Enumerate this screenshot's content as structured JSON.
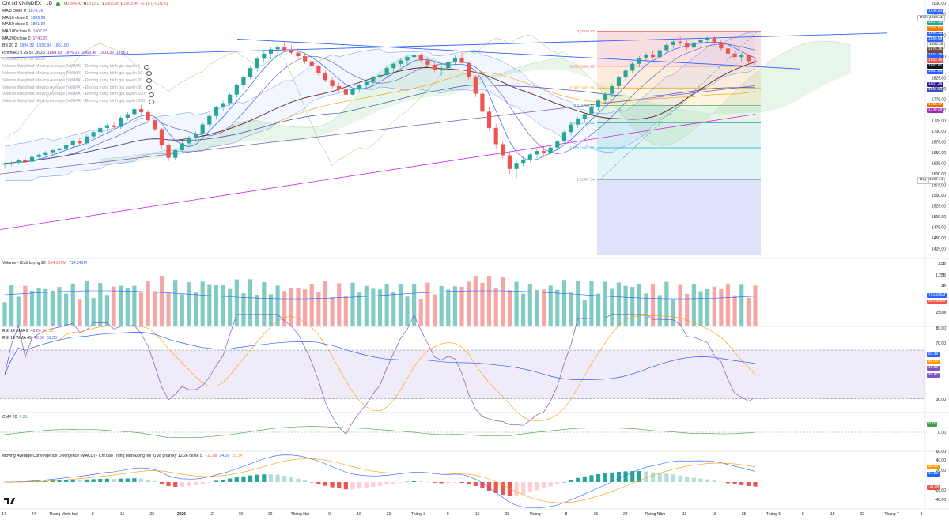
{
  "header": {
    "title": "Chỉ số VNINDEX · 1D",
    "ohlc": [
      {
        "label": "O",
        "value": "1864.42"
      },
      {
        "label": "H",
        "value": "1873.17"
      },
      {
        "label": "L",
        "value": "1855.96"
      },
      {
        "label": "C",
        "value": "1863.46"
      }
    ],
    "change": "−0.16 (−0.01%)"
  },
  "legend": [
    {
      "label": "MA 5 close 0",
      "values": [
        "1874.36"
      ],
      "color": "#2962ff"
    },
    {
      "label": "MA 10 close 0",
      "values": [
        "1889.99"
      ],
      "color": "#2962ff"
    },
    {
      "label": "MA 50 close 0",
      "values": [
        "1801.94"
      ],
      "color": "#3f51b5"
    },
    {
      "label": "MA 100 close 0",
      "values": [
        "1807.25"
      ],
      "color": "#7e57c2"
    },
    {
      "label": "MA 200 close 0",
      "values": [
        "1740.09"
      ],
      "color": "#9c27b0"
    },
    {
      "label": "BB 20 2",
      "values": [
        "1894.32",
        "1936.84",
        "1851.80"
      ],
      "color": "#2962ff"
    },
    {
      "label": "Ichimoku 9 26 52 26 26",
      "values": [
        "1894.53",
        "1876.15",
        "1863.46",
        "1901.35",
        "1756.77"
      ],
      "color": "#7b1fa2"
    },
    {
      "label": "Ichimoku 9 17 36 36 36",
      "values": [],
      "color": "#7b1fa2"
    },
    {
      "label": "Volume Weighted Moving Average (VWMA) - Đường trung bình gia quyền 5",
      "values": [],
      "color": "#2962ff"
    },
    {
      "label": "Volume Weighted Moving Average (VWMA) - Đường trung bình gia quyền 10",
      "values": [],
      "color": "#2962ff"
    },
    {
      "label": "Volume Weighted Moving Average (VWMA) - Đường trung bình gia quyền 20",
      "values": [],
      "color": "#2962ff"
    },
    {
      "label": "Volume Weighted Moving Average (VWMA) - Đường trung bình gia quyền 50",
      "values": [],
      "color": "#2962ff"
    },
    {
      "label": "Volume Weighted Moving Average (VWMA) - Đường trung bình gia quyền 100",
      "values": [],
      "color": "#2962ff"
    },
    {
      "label": "Volume Weighted Moving Average (VWMA) - Đường trung bình gia quyền 200",
      "values": [],
      "color": "#2962ff"
    }
  ],
  "panes": {
    "volume": {
      "label": "Volume - Khối lượng 20",
      "values": [
        "554.909M",
        "714.241M"
      ],
      "colors": [
        "#ef5350",
        "#2962ff"
      ]
    },
    "rsi": [
      {
        "label": "RSI 14 EMA 9",
        "values": [
          "48.80",
          "55.03"
        ],
        "colors": [
          "#7e57c2",
          "#ff9800"
        ]
      },
      {
        "label": "RSI 14 WMA 45",
        "values": [
          "48.80",
          "61.38"
        ],
        "colors": [
          "#7e57c2",
          "#2962ff"
        ]
      }
    ],
    "cmf": {
      "label": "CMF 20",
      "values": [
        "0.21"
      ],
      "colors": [
        "#43a047"
      ]
    },
    "macd": {
      "label": "Moving Average Convergence Divergence (MACD) - Chỉ báo Trung bình Động hội tụ và phân kỳ 12 26 close 9",
      "values": [
        "−11.08",
        "14.26",
        "25.34"
      ],
      "colors": [
        "#ef5350",
        "#2962ff",
        "#ff9800"
      ]
    }
  },
  "price_axis": {
    "ticks": [
      "2000.00",
      "1975.00",
      "1925.00",
      "1875.00",
      "1825.00",
      "1800.00",
      "1775.00",
      "1750.00",
      "1725.00",
      "1700.00",
      "1675.00",
      "1650.00",
      "1625.00",
      "1600.00",
      "1575.00",
      "1550.00",
      "1525.00",
      "1500.00",
      "1475.00",
      "1450.00",
      "1425.00"
    ],
    "markers": [
      {
        "text": "1936.84",
        "bg": "#2962ff"
      },
      {
        "text": "1923.11",
        "bg": "#ffffff",
        "fg": "#131722",
        "tag": "Đỉnh"
      },
      {
        "text": "1901.35",
        "bg": "#26a69a"
      },
      {
        "text": "1894.53",
        "bg": "#f57c00"
      },
      {
        "text": "1894.32",
        "bg": "#2962ff"
      },
      {
        "text": "1889.99",
        "bg": "#2962ff"
      },
      {
        "text": "1885.35",
        "bg": "#ffffff",
        "fg": "#131722"
      },
      {
        "text": "1876.15",
        "bg": "#6d4c41"
      },
      {
        "text": "1874.36",
        "bg": "#2962ff"
      },
      {
        "text": "1863.46",
        "bg": "#ef5350"
      },
      {
        "text": "1862.81",
        "bg": "#131722"
      },
      {
        "text": "1851.80",
        "bg": "#2962ff"
      },
      {
        "text": "1807.25",
        "bg": "#311b92"
      },
      {
        "text": "1801.94",
        "bg": "#3f51b5"
      },
      {
        "text": "1756.77",
        "bg": "#ef6c00"
      },
      {
        "text": "1740.09",
        "bg": "#9c27b0"
      },
      {
        "text": "1586.44",
        "bg": "#ffffff",
        "fg": "#131722",
        "tag": "Đáy"
      }
    ]
  },
  "volume_axis": {
    "ticks": [
      "1.5B",
      "1.25B",
      "1B",
      "250M"
    ],
    "markers": [
      {
        "text": "714.241M",
        "bg": "#2962ff"
      },
      {
        "text": "554.909M",
        "bg": "#ef5350"
      }
    ]
  },
  "rsi_axis": {
    "ticks": [
      "80.00",
      "70.00",
      "30.00"
    ],
    "markers": [
      {
        "text": "61.38",
        "bg": "#2962ff"
      },
      {
        "text": "55.03",
        "bg": "#ff9800"
      },
      {
        "text": "48.80",
        "bg": "#7e57c2"
      },
      {
        "text": "48.80",
        "bg": "#7e57c2"
      }
    ]
  },
  "cmf_axis": {
    "ticks": [
      "0.00"
    ],
    "markers": [
      {
        "text": "0.21",
        "bg": "#43a047"
      }
    ]
  },
  "macd_axis": {
    "ticks": [
      "60.00",
      "40.00",
      "20.00",
      "-20.00",
      "-40.00"
    ],
    "markers": [
      {
        "text": "25.34",
        "bg": "#ff9800"
      },
      {
        "text": "14.26",
        "bg": "#2962ff"
      },
      {
        "text": "-11.08",
        "bg": "#ef5350"
      }
    ]
  },
  "time_axis": [
    "17",
    "24",
    "Tháng Mười hai",
    "8",
    "15",
    "22",
    "2026",
    "12",
    "19",
    "26",
    "Tháng Hai",
    "9",
    "16",
    "23",
    "Tháng 3",
    "9",
    "16",
    "23",
    "Tháng 4",
    "8",
    "15",
    "22",
    "Tháng Năm",
    "11",
    "18",
    "25",
    "Tháng 6",
    "8",
    "15",
    "22",
    "Tháng 7",
    "8"
  ],
  "fib_levels": [
    {
      "label": "0 (1934.13)",
      "value": 1934.13,
      "color": "#ef5350"
    },
    {
      "label": "0.236 (1852.29)",
      "value": 1852.29,
      "color": "#ef5350"
    },
    {
      "label": "0.382 (1801.66)",
      "value": 1801.66,
      "color": "#ff9800"
    },
    {
      "label": "0.5 (1760.74)",
      "value": 1760.74,
      "color": "#4caf50"
    },
    {
      "label": "0.618 (1719.82)",
      "value": 1719.82,
      "color": "#26a69a"
    },
    {
      "label": "0.786 (1661.56)",
      "value": 1661.56,
      "color": "#00bcd4"
    },
    {
      "label": "1 (1587.34)",
      "value": 1587.34,
      "color": "#787b86"
    }
  ],
  "chart_data": {
    "type": "candlestick",
    "title": "Chỉ số VNINDEX · 1D",
    "ylim": [
      1410,
      2000
    ],
    "candles": [
      [
        1622,
        1628,
        1612,
        1625
      ],
      [
        1625,
        1630,
        1618,
        1627
      ],
      [
        1627,
        1636,
        1622,
        1633
      ],
      [
        1633,
        1640,
        1626,
        1629
      ],
      [
        1629,
        1642,
        1626,
        1640
      ],
      [
        1640,
        1648,
        1634,
        1645
      ],
      [
        1645,
        1654,
        1640,
        1651
      ],
      [
        1651,
        1659,
        1645,
        1656
      ],
      [
        1656,
        1663,
        1650,
        1660
      ],
      [
        1660,
        1672,
        1655,
        1668
      ],
      [
        1668,
        1680,
        1663,
        1677
      ],
      [
        1677,
        1685,
        1668,
        1672
      ],
      [
        1672,
        1692,
        1668,
        1688
      ],
      [
        1688,
        1702,
        1682,
        1698
      ],
      [
        1698,
        1712,
        1690,
        1708
      ],
      [
        1708,
        1718,
        1700,
        1714
      ],
      [
        1714,
        1722,
        1705,
        1710
      ],
      [
        1710,
        1736,
        1706,
        1732
      ],
      [
        1732,
        1745,
        1725,
        1740
      ],
      [
        1740,
        1756,
        1735,
        1752
      ],
      [
        1752,
        1762,
        1740,
        1745
      ],
      [
        1745,
        1750,
        1720,
        1726
      ],
      [
        1726,
        1730,
        1700,
        1705
      ],
      [
        1705,
        1708,
        1660,
        1668
      ],
      [
        1668,
        1672,
        1630,
        1638
      ],
      [
        1638,
        1660,
        1632,
        1656
      ],
      [
        1656,
        1676,
        1650,
        1672
      ],
      [
        1672,
        1690,
        1665,
        1686
      ],
      [
        1686,
        1700,
        1678,
        1694
      ],
      [
        1694,
        1720,
        1688,
        1716
      ],
      [
        1716,
        1740,
        1710,
        1736
      ],
      [
        1736,
        1760,
        1730,
        1756
      ],
      [
        1756,
        1772,
        1748,
        1766
      ],
      [
        1766,
        1790,
        1760,
        1786
      ],
      [
        1786,
        1812,
        1780,
        1808
      ],
      [
        1808,
        1832,
        1800,
        1828
      ],
      [
        1828,
        1852,
        1822,
        1848
      ],
      [
        1848,
        1875,
        1840,
        1870
      ],
      [
        1870,
        1888,
        1860,
        1882
      ],
      [
        1882,
        1898,
        1872,
        1892
      ],
      [
        1892,
        1905,
        1880,
        1898
      ],
      [
        1898,
        1910,
        1885,
        1890
      ],
      [
        1890,
        1902,
        1878,
        1884
      ],
      [
        1884,
        1895,
        1870,
        1876
      ],
      [
        1876,
        1882,
        1858,
        1864
      ],
      [
        1864,
        1872,
        1848,
        1852
      ],
      [
        1852,
        1856,
        1830,
        1836
      ],
      [
        1836,
        1842,
        1815,
        1820
      ],
      [
        1820,
        1826,
        1800,
        1806
      ],
      [
        1806,
        1814,
        1790,
        1798
      ],
      [
        1798,
        1805,
        1780,
        1786
      ],
      [
        1786,
        1802,
        1782,
        1798
      ],
      [
        1798,
        1812,
        1792,
        1808
      ],
      [
        1808,
        1822,
        1800,
        1816
      ],
      [
        1816,
        1830,
        1810,
        1826
      ],
      [
        1826,
        1838,
        1815,
        1832
      ],
      [
        1832,
        1852,
        1825,
        1848
      ],
      [
        1848,
        1862,
        1838,
        1858
      ],
      [
        1858,
        1872,
        1850,
        1866
      ],
      [
        1866,
        1880,
        1856,
        1874
      ],
      [
        1874,
        1886,
        1866,
        1878
      ],
      [
        1878,
        1884,
        1860,
        1866
      ],
      [
        1866,
        1872,
        1848,
        1856
      ],
      [
        1856,
        1862,
        1838,
        1844
      ],
      [
        1844,
        1852,
        1830,
        1848
      ],
      [
        1848,
        1866,
        1842,
        1862
      ],
      [
        1862,
        1878,
        1855,
        1872
      ],
      [
        1872,
        1885,
        1864,
        1860
      ],
      [
        1860,
        1864,
        1820,
        1826
      ],
      [
        1826,
        1832,
        1780,
        1788
      ],
      [
        1788,
        1796,
        1740,
        1746
      ],
      [
        1746,
        1756,
        1700,
        1708
      ],
      [
        1708,
        1716,
        1660,
        1670
      ],
      [
        1670,
        1676,
        1636,
        1644
      ],
      [
        1644,
        1650,
        1600,
        1612
      ],
      [
        1612,
        1632,
        1590,
        1626
      ],
      [
        1626,
        1640,
        1618,
        1634
      ],
      [
        1634,
        1650,
        1628,
        1646
      ],
      [
        1646,
        1660,
        1638,
        1654
      ],
      [
        1654,
        1664,
        1640,
        1650
      ],
      [
        1650,
        1668,
        1645,
        1662
      ],
      [
        1662,
        1680,
        1656,
        1676
      ],
      [
        1676,
        1702,
        1670,
        1698
      ],
      [
        1698,
        1720,
        1690,
        1716
      ],
      [
        1716,
        1734,
        1708,
        1730
      ],
      [
        1730,
        1744,
        1720,
        1740
      ],
      [
        1740,
        1760,
        1734,
        1756
      ],
      [
        1756,
        1776,
        1748,
        1772
      ],
      [
        1772,
        1792,
        1766,
        1788
      ],
      [
        1788,
        1812,
        1780,
        1806
      ],
      [
        1806,
        1830,
        1798,
        1826
      ],
      [
        1826,
        1846,
        1820,
        1842
      ],
      [
        1842,
        1862,
        1836,
        1858
      ],
      [
        1858,
        1876,
        1850,
        1872
      ],
      [
        1872,
        1884,
        1862,
        1880
      ],
      [
        1880,
        1890,
        1868,
        1874
      ],
      [
        1874,
        1894,
        1870,
        1890
      ],
      [
        1890,
        1906,
        1884,
        1902
      ],
      [
        1902,
        1916,
        1894,
        1910
      ],
      [
        1910,
        1922,
        1900,
        1906
      ],
      [
        1906,
        1914,
        1890,
        1896
      ],
      [
        1896,
        1912,
        1890,
        1908
      ],
      [
        1908,
        1920,
        1898,
        1914
      ],
      [
        1914,
        1922,
        1906,
        1918
      ],
      [
        1918,
        1924,
        1904,
        1908
      ],
      [
        1908,
        1914,
        1890,
        1894
      ],
      [
        1894,
        1900,
        1876,
        1882
      ],
      [
        1882,
        1890,
        1868,
        1874
      ],
      [
        1874,
        1884,
        1862,
        1878
      ],
      [
        1878,
        1882,
        1858,
        1864
      ],
      [
        1864,
        1873,
        1856,
        1863
      ]
    ]
  }
}
